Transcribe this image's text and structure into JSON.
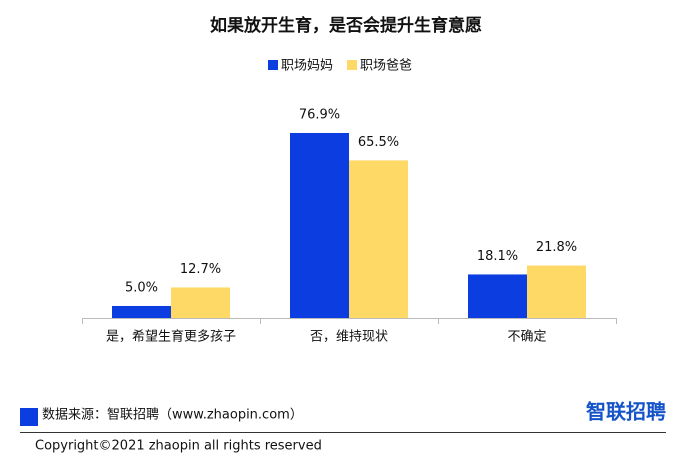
{
  "chart_data": {
    "type": "bar",
    "title": "如果放开生育，是否会提升生育意愿",
    "categories": [
      "是，希望生育更多孩子",
      "否，维持现状",
      "不确定"
    ],
    "series": [
      {
        "name": "职场妈妈",
        "color": "#0b3de0",
        "values": [
          5.0,
          76.9,
          18.1
        ],
        "value_labels": [
          "5.0%",
          "76.9%",
          "18.1%"
        ]
      },
      {
        "name": "职场爸爸",
        "color": "#ffd966",
        "values": [
          12.7,
          65.5,
          21.8
        ],
        "value_labels": [
          "12.7%",
          "65.5%",
          "21.8%"
        ]
      }
    ]
  },
  "footer": {
    "source": "数据来源：智联招聘（www.zhaopin.com）",
    "logo": "智联招聘",
    "copyright": "Copyright©2021 zhaopin all rights reserved"
  }
}
